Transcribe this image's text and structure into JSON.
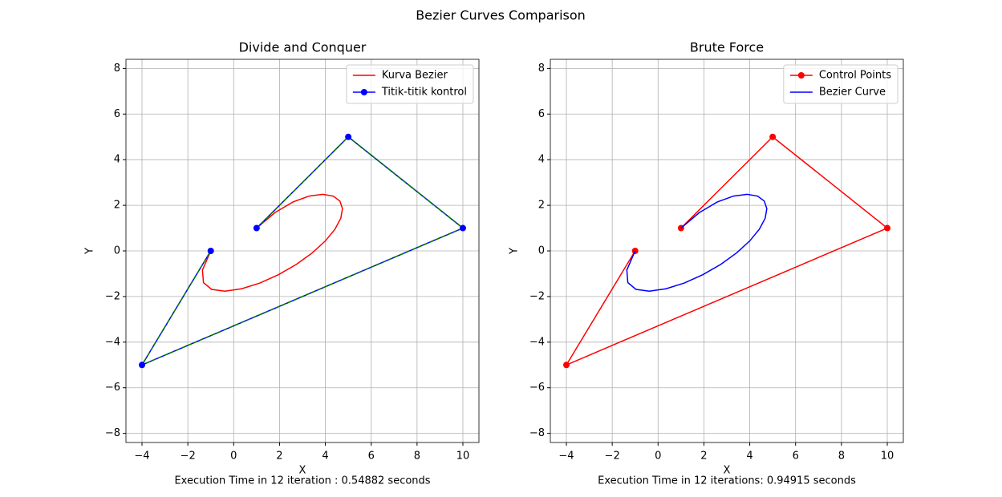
{
  "title": "Bezier Curves Comparison",
  "chart_data": [
    {
      "type": "line",
      "title": "Divide and Conquer",
      "x_label": "X",
      "y_label": "Y",
      "footnote": "Execution Time in 12 iteration : 0.54882 seconds",
      "xlim": [
        -4.7,
        10.7
      ],
      "ylim": [
        -8.4,
        8.4
      ],
      "xticks": [
        {
          "value": -4,
          "label": "−4"
        },
        {
          "value": -2,
          "label": "−2"
        },
        0,
        2,
        4,
        6,
        8,
        10
      ],
      "yticks": [
        {
          "value": -8,
          "label": "−8"
        },
        {
          "value": -6,
          "label": "−6"
        },
        {
          "value": -4,
          "label": "−4"
        },
        {
          "value": -2,
          "label": "−2"
        },
        0,
        2,
        4,
        6,
        8
      ],
      "grid": true,
      "legend": "upper right",
      "series": [
        {
          "name": "Kurva Bezier",
          "color": "#ff0000",
          "marker": false,
          "x": [
            1,
            1.805,
            2.586,
            3.293,
            3.89,
            4.344,
            4.634,
            4.745,
            4.674,
            4.421,
            4,
            3.429,
            2.738,
            1.961,
            1.146,
            0.344,
            -0.382,
            -0.963,
            -1.318,
            -1.363,
            -1
          ],
          "values": [
            1,
            1.683,
            2.145,
            2.405,
            2.483,
            2.402,
            2.185,
            1.854,
            1.435,
            0.954,
            0.438,
            -0.086,
            -0.589,
            -1.039,
            -1.407,
            -1.66,
            -1.765,
            -1.687,
            -1.391,
            -0.841,
            0
          ]
        },
        {
          "name": "Titik-titik kontrol",
          "color": "#0000ff",
          "marker": true,
          "overlay_color": "#008000",
          "x": [
            1,
            5,
            10,
            -4,
            -1
          ],
          "values": [
            1,
            5,
            1,
            -5,
            0
          ]
        }
      ]
    },
    {
      "type": "line",
      "title": "Brute Force",
      "x_label": "X",
      "y_label": "Y",
      "footnote": "Execution Time in 12 iterations: 0.94915 seconds",
      "xlim": [
        -4.7,
        10.7
      ],
      "ylim": [
        -8.4,
        8.4
      ],
      "xticks": [
        {
          "value": -4,
          "label": "−4"
        },
        {
          "value": -2,
          "label": "−2"
        },
        0,
        2,
        4,
        6,
        8,
        10
      ],
      "yticks": [
        {
          "value": -8,
          "label": "−8"
        },
        {
          "value": -6,
          "label": "−6"
        },
        {
          "value": -4,
          "label": "−4"
        },
        {
          "value": -2,
          "label": "−2"
        },
        0,
        2,
        4,
        6,
        8
      ],
      "grid": true,
      "legend": "upper right",
      "series": [
        {
          "name": "Control Points",
          "color": "#ff0000",
          "marker": true,
          "x": [
            1,
            5,
            10,
            -4,
            -1
          ],
          "values": [
            1,
            5,
            1,
            -5,
            0
          ]
        },
        {
          "name": "Bezier Curve",
          "color": "#0000ff",
          "marker": false,
          "x": [
            1,
            1.805,
            2.586,
            3.293,
            3.89,
            4.344,
            4.634,
            4.745,
            4.674,
            4.421,
            4,
            3.429,
            2.738,
            1.961,
            1.146,
            0.344,
            -0.382,
            -0.963,
            -1.318,
            -1.363,
            -1
          ],
          "values": [
            1,
            1.683,
            2.145,
            2.405,
            2.483,
            2.402,
            2.185,
            1.854,
            1.435,
            0.954,
            0.438,
            -0.086,
            -0.589,
            -1.039,
            -1.407,
            -1.66,
            -1.765,
            -1.687,
            -1.391,
            -0.841,
            0
          ]
        }
      ]
    }
  ]
}
